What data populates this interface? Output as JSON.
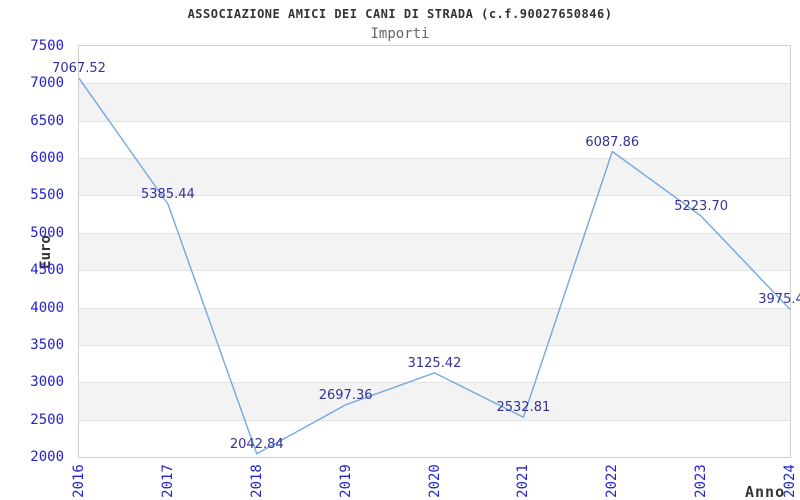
{
  "page": {
    "title": "ASSOCIAZIONE AMICI DEI CANI DI STRADA (c.f.90027650846)",
    "subtitle": "Importi"
  },
  "chart_data": {
    "type": "line",
    "title": "ASSOCIAZIONE AMICI DEI CANI DI STRADA (c.f.90027650846)",
    "subtitle": "Importi",
    "xlabel": "Anno",
    "ylabel": "Euro",
    "x": [
      "2016",
      "2017",
      "2018",
      "2019",
      "2020",
      "2021",
      "2022",
      "2023",
      "2024"
    ],
    "series": [
      {
        "name": "Importi",
        "values": [
          7067.52,
          5385.44,
          2042.84,
          2697.36,
          3125.42,
          2532.81,
          6087.86,
          5223.7,
          3975.4
        ]
      }
    ],
    "point_labels": [
      "7067.52",
      "5385.44",
      "2042.84",
      "2697.36",
      "3125.42",
      "2532.81",
      "6087.86",
      "5223.70",
      "3975.4"
    ],
    "ylim": [
      2000,
      7500
    ],
    "ytick_step": 500,
    "yticks": [
      2000,
      2500,
      3000,
      3500,
      4000,
      4500,
      5000,
      5500,
      6000,
      6500,
      7000,
      7500
    ],
    "grid": "horizontal alternating white/gray bands with thin gridlines at each 500 step",
    "legend": "none",
    "markers": "none"
  },
  "colors": {
    "line": "#74a9e0",
    "tick_label": "#2323cc",
    "point_label": "#32329b",
    "band_gray": "#f3f3f3",
    "gridline": "#e3e3e3",
    "plot_border": "#d0d0d0",
    "title": "#333333",
    "subtitle": "#666666",
    "axis_title": "#333333",
    "background": "#ffffff"
  }
}
